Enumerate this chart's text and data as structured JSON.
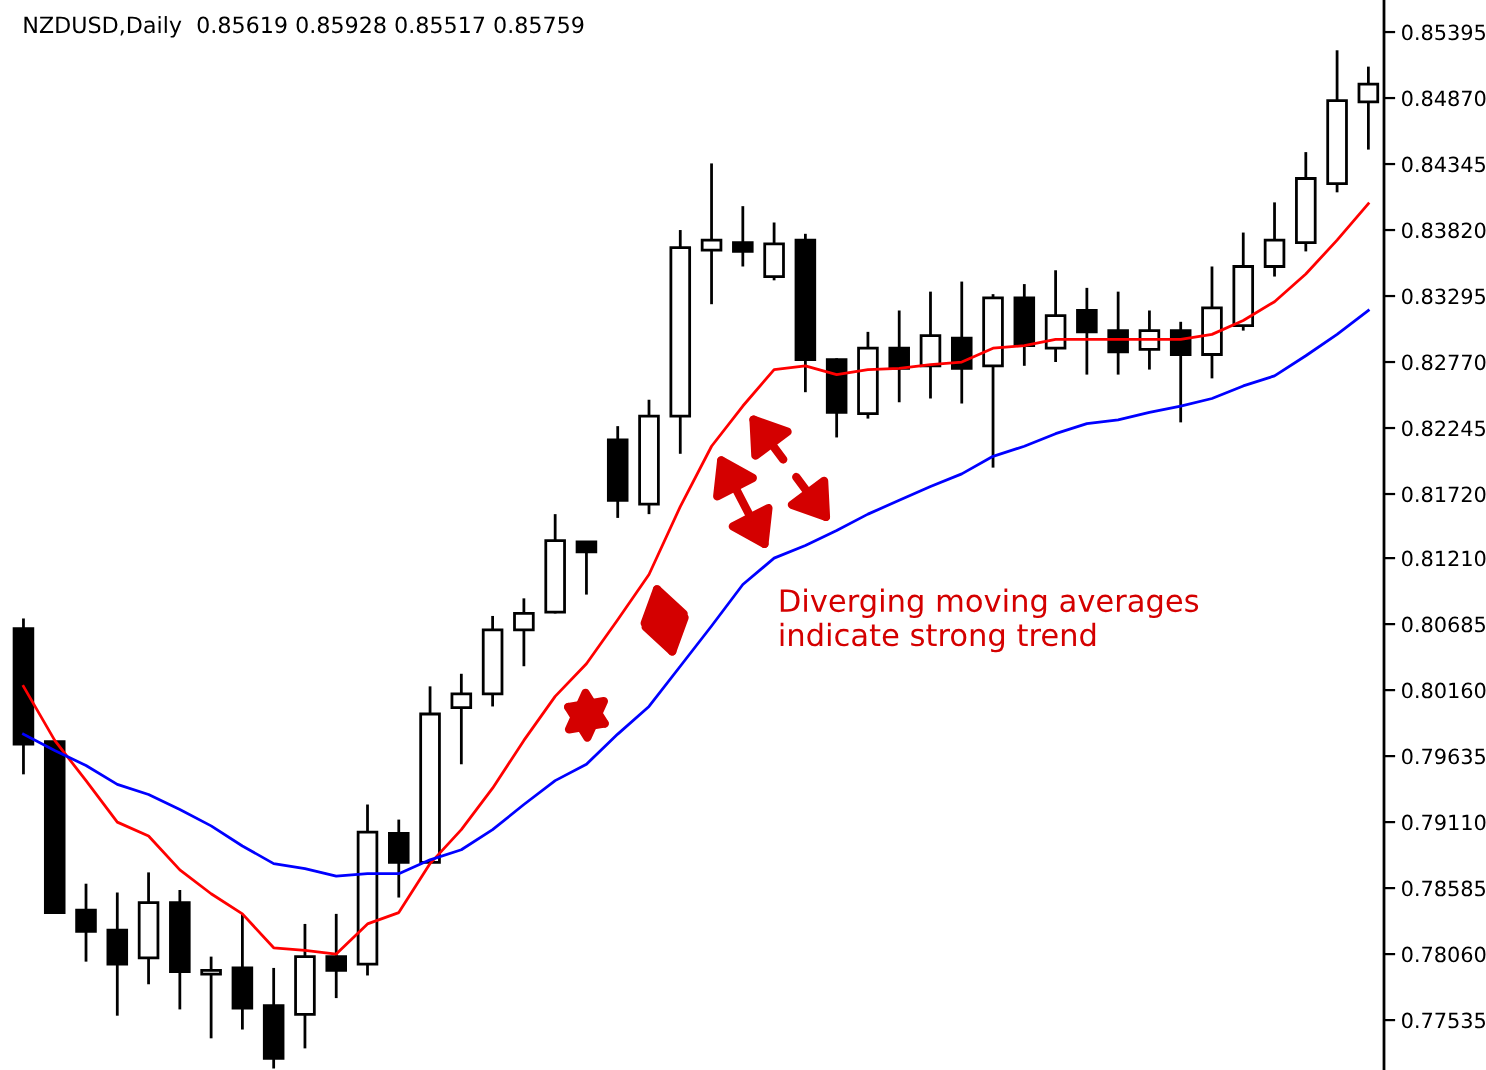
{
  "chart_data": {
    "type": "candlestick",
    "title": "NZDUSD,Daily  0.85619 0.85928 0.85517 0.85759",
    "annotations": [
      "Diverging moving averages\nindicate strong trend"
    ],
    "categories": [
      null,
      null,
      null,
      null,
      null,
      null,
      null,
      null,
      null,
      null,
      null,
      null,
      null,
      null,
      null,
      null,
      null,
      null,
      null,
      null,
      null,
      null,
      null,
      null,
      null,
      null,
      null,
      null,
      null,
      null,
      null,
      null,
      null,
      null,
      null,
      null,
      null,
      null,
      null,
      null,
      null,
      null,
      null,
      null
    ],
    "ohlc": [
      [
        0.8065,
        0.8073,
        0.7949,
        0.7973
      ],
      [
        0.7975,
        0.7975,
        0.7838,
        0.7839
      ],
      [
        0.7841,
        0.7862,
        0.78,
        0.7824
      ],
      [
        0.7825,
        0.7855,
        0.7757,
        0.7798
      ],
      [
        0.7803,
        0.7871,
        0.7782,
        0.7847
      ],
      [
        0.7847,
        0.7857,
        0.7762,
        0.7792
      ],
      [
        0.779,
        0.7804,
        0.7739,
        0.7793
      ],
      [
        0.7795,
        0.7838,
        0.7746,
        0.7763
      ],
      [
        0.7765,
        0.7795,
        0.7715,
        0.7723
      ],
      [
        0.7758,
        0.783,
        0.7731,
        0.7804
      ],
      [
        0.7804,
        0.7838,
        0.7771,
        0.7793
      ],
      [
        0.7798,
        0.7925,
        0.7789,
        0.7903
      ],
      [
        0.7902,
        0.7913,
        0.7851,
        0.7879
      ],
      [
        0.7879,
        0.8019,
        0.7879,
        0.7997
      ],
      [
        0.8002,
        0.8029,
        0.7957,
        0.8013
      ],
      [
        0.8013,
        0.8075,
        0.8003,
        0.8064
      ],
      [
        0.8064,
        0.8089,
        0.8035,
        0.8077
      ],
      [
        0.8078,
        0.8156,
        0.8077,
        0.8135
      ],
      [
        0.8134,
        0.8134,
        0.8092,
        0.8126
      ],
      [
        0.8215,
        0.8226,
        0.8153,
        0.8167
      ],
      [
        0.8164,
        0.8247,
        0.8156,
        0.8234
      ],
      [
        0.8234,
        0.8382,
        0.8204,
        0.8368
      ],
      [
        0.8366,
        0.8435,
        0.8323,
        0.8374
      ],
      [
        0.8372,
        0.8401,
        0.8353,
        0.8365
      ],
      [
        0.8345,
        0.8388,
        0.8342,
        0.8371
      ],
      [
        0.8374,
        0.8379,
        0.8253,
        0.8279
      ],
      [
        0.8279,
        0.828,
        0.8217,
        0.8237
      ],
      [
        0.8236,
        0.8301,
        0.8232,
        0.8288
      ],
      [
        0.8288,
        0.8318,
        0.8245,
        0.8272
      ],
      [
        0.8274,
        0.8333,
        0.8248,
        0.8298
      ],
      [
        0.8296,
        0.8341,
        0.8244,
        0.8272
      ],
      [
        0.8274,
        0.8331,
        0.8193,
        0.8328
      ],
      [
        0.8328,
        0.8339,
        0.8274,
        0.829
      ],
      [
        0.8288,
        0.835,
        0.8277,
        0.8314
      ],
      [
        0.8318,
        0.8336,
        0.8267,
        0.8301
      ],
      [
        0.8302,
        0.8333,
        0.8267,
        0.8285
      ],
      [
        0.8287,
        0.8318,
        0.8271,
        0.8302
      ],
      [
        0.8302,
        0.8309,
        0.8229,
        0.8283
      ],
      [
        0.8283,
        0.8353,
        0.8264,
        0.832
      ],
      [
        0.8306,
        0.838,
        0.8302,
        0.8353
      ],
      [
        0.8353,
        0.8404,
        0.8345,
        0.8374
      ],
      [
        0.8372,
        0.8444,
        0.8365,
        0.8423
      ],
      [
        0.8419,
        0.8525,
        0.8412,
        0.8485
      ],
      [
        0.8484,
        0.8512,
        0.8446,
        0.8498
      ]
    ],
    "series": [
      {
        "type": "line",
        "color": "#ff0000",
        "values": [
          0.8019,
          0.7976,
          0.7944,
          0.7911,
          0.79,
          0.7873,
          0.7854,
          0.7838,
          0.7811,
          0.7809,
          0.7806,
          0.783,
          0.7839,
          0.7878,
          0.7905,
          0.7938,
          0.7976,
          0.8011,
          0.8037,
          0.8072,
          0.8108,
          0.8162,
          0.821,
          0.8242,
          0.8271,
          0.8274,
          0.8267,
          0.8271,
          0.8272,
          0.8275,
          0.8277,
          0.8288,
          0.829,
          0.8295,
          0.8295,
          0.8295,
          0.8295,
          0.8295,
          0.8299,
          0.831,
          0.8325,
          0.8347,
          0.8374,
          0.8403
        ]
      },
      {
        "type": "line",
        "color": "#0000ff",
        "values": [
          0.7981,
          0.7968,
          0.7956,
          0.7941,
          0.7933,
          0.7921,
          0.7908,
          0.7892,
          0.7878,
          0.7874,
          0.7868,
          0.787,
          0.787,
          0.7881,
          0.7889,
          0.7905,
          0.7925,
          0.7944,
          0.7957,
          0.7981,
          0.8003,
          0.8035,
          0.8067,
          0.81,
          0.8121,
          0.8131,
          0.8143,
          0.8156,
          0.8167,
          0.8178,
          0.8188,
          0.8202,
          0.821,
          0.822,
          0.8228,
          0.8231,
          0.8237,
          0.8242,
          0.8248,
          0.8258,
          0.8266,
          0.8282,
          0.8299,
          0.8318
        ]
      }
    ],
    "ylim": [
      0.77138,
      0.8565
    ],
    "yticks": [
      {
        "value": 0.77535,
        "label": "0.77535"
      },
      {
        "value": 0.7806,
        "label": "0.78060"
      },
      {
        "value": 0.78585,
        "label": "0.78585"
      },
      {
        "value": 0.7911,
        "label": "0.79110"
      },
      {
        "value": 0.79635,
        "label": "0.79635"
      },
      {
        "value": 0.8016,
        "label": "0.80160"
      },
      {
        "value": 0.80685,
        "label": "0.80685"
      },
      {
        "value": 0.8121,
        "label": "0.81210"
      },
      {
        "value": 0.8172,
        "label": "0.81720"
      },
      {
        "value": 0.82245,
        "label": "0.82245"
      },
      {
        "value": 0.8277,
        "label": "0.82770"
      },
      {
        "value": 0.83295,
        "label": "0.83295"
      },
      {
        "value": 0.8382,
        "label": "0.83820"
      },
      {
        "value": 0.84345,
        "label": "0.84345"
      },
      {
        "value": 0.8487,
        "label": "0.84870"
      },
      {
        "value": 0.85395,
        "label": "0.85395"
      }
    ],
    "grid": false,
    "marker": "none",
    "line_style": "solid"
  }
}
